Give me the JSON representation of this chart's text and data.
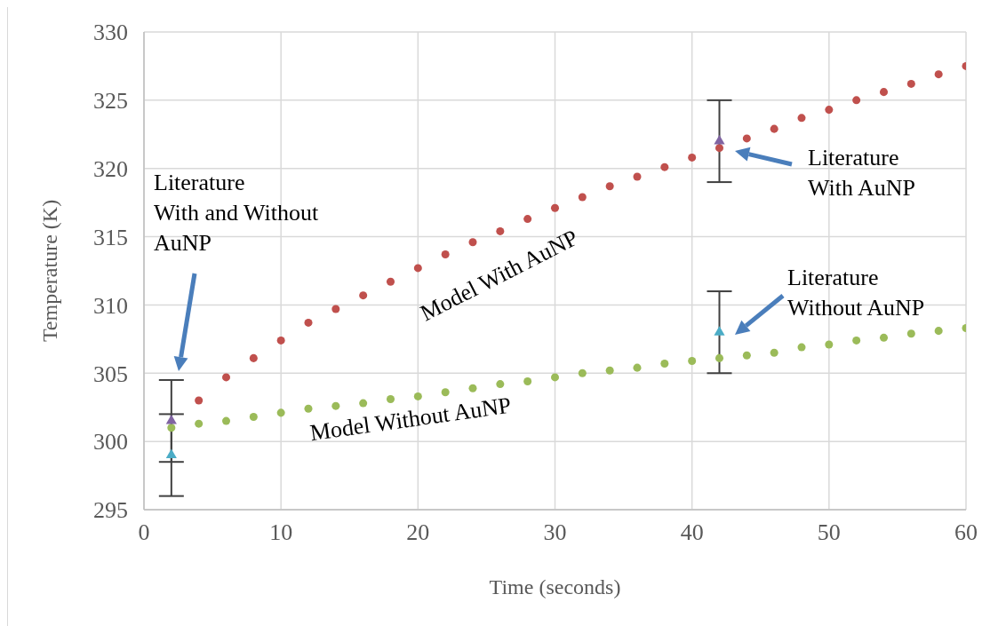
{
  "chart_data": {
    "type": "scatter",
    "xlabel": "Time (seconds)",
    "ylabel": "Temperature (K)",
    "xlim": [
      0,
      60
    ],
    "xticks": [
      0,
      10,
      20,
      30,
      40,
      50,
      60
    ],
    "ylim": [
      295,
      330
    ],
    "yticks": [
      295,
      300,
      305,
      310,
      315,
      320,
      325,
      330
    ],
    "grid": true,
    "series": [
      {
        "name": "Model With AuNP",
        "color": "#c0504d",
        "marker": "circle",
        "x": [
          4,
          6,
          8,
          10,
          12,
          14,
          16,
          18,
          20,
          22,
          24,
          26,
          28,
          30,
          32,
          34,
          36,
          38,
          40,
          42,
          44,
          46,
          48,
          50,
          52,
          54,
          56,
          58,
          60
        ],
        "values": [
          303.0,
          304.7,
          306.1,
          307.4,
          308.7,
          309.7,
          310.7,
          311.7,
          312.7,
          313.7,
          314.6,
          315.4,
          316.3,
          317.1,
          317.9,
          318.7,
          319.4,
          320.1,
          320.8,
          321.5,
          322.2,
          322.9,
          323.7,
          324.3,
          325.0,
          325.6,
          326.2,
          326.9,
          327.5
        ]
      },
      {
        "name": "Model Without AuNP",
        "color": "#9bbb59",
        "marker": "circle",
        "x": [
          2,
          4,
          6,
          8,
          10,
          12,
          14,
          16,
          18,
          20,
          22,
          24,
          26,
          28,
          30,
          32,
          34,
          36,
          38,
          40,
          42,
          44,
          46,
          48,
          50,
          52,
          54,
          56,
          58,
          60
        ],
        "values": [
          301.0,
          301.3,
          301.5,
          301.8,
          302.1,
          302.4,
          302.6,
          302.8,
          303.1,
          303.3,
          303.6,
          303.9,
          304.2,
          304.4,
          304.7,
          305.0,
          305.2,
          305.4,
          305.7,
          305.9,
          306.1,
          306.3,
          306.5,
          306.9,
          307.1,
          307.4,
          307.6,
          307.9,
          308.1,
          308.3
        ]
      },
      {
        "color": "#8064a2",
        "marker": "triangle",
        "x": [
          2,
          42
        ],
        "values": [
          301.5,
          322
        ],
        "errors": [
          3,
          3
        ]
      },
      {
        "color": "#4bacc6",
        "marker": "triangle",
        "x": [
          2,
          42
        ],
        "values": [
          299,
          308
        ],
        "errors": [
          3,
          3
        ]
      }
    ],
    "annotations": [
      "Literature\nWith and Without\nAuNP",
      "Literature\nWith AuNP",
      "Literature\nWithout AuNP"
    ]
  }
}
